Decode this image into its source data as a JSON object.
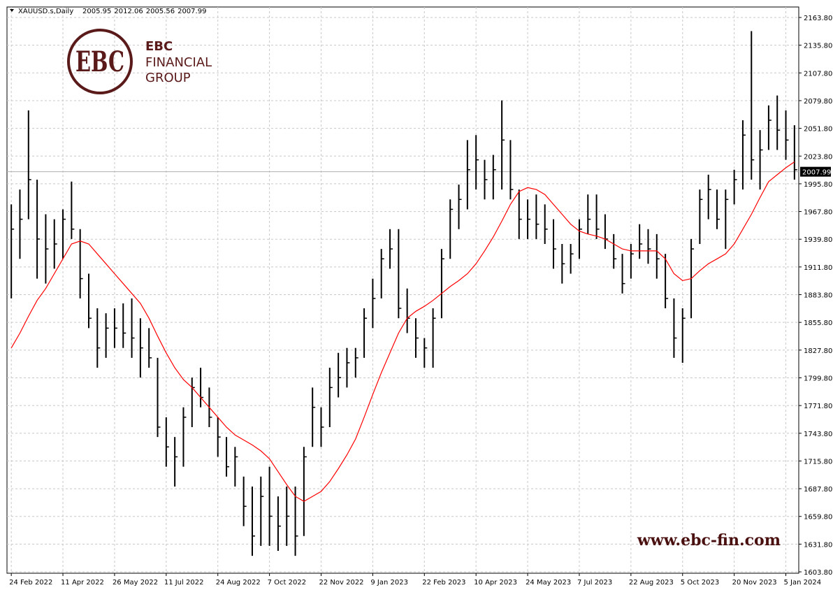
{
  "chart_data": {
    "type": "ohlc",
    "symbol": "XAUUSD.s,Daily",
    "header_values": [
      2005.95,
      2012.06,
      2005.56,
      2007.99
    ],
    "watermark": "www.ebc-fin.com",
    "logo": {
      "mark": "EBC",
      "line1": "FINANCIAL",
      "line2": "GROUP"
    },
    "color": "#000000",
    "ma_color": "#ff0000",
    "current_price": 2007.99,
    "categories": [
      "24 Feb 2022",
      null,
      null,
      null,
      null,
      null,
      "11 Apr 2022",
      null,
      null,
      null,
      null,
      null,
      "26 May 2022",
      null,
      null,
      null,
      null,
      null,
      "11 Jul 2022",
      null,
      null,
      null,
      null,
      null,
      "24 Aug 2022",
      null,
      null,
      null,
      null,
      null,
      "7 Oct 2022",
      null,
      null,
      null,
      null,
      null,
      "22 Nov 2022",
      null,
      null,
      null,
      null,
      null,
      "9 Jan 2023",
      null,
      null,
      null,
      null,
      null,
      "22 Feb 2023",
      null,
      null,
      null,
      null,
      null,
      "10 Apr 2023",
      null,
      null,
      null,
      null,
      null,
      "24 May 2023",
      null,
      null,
      null,
      null,
      null,
      "7 Jul 2023",
      null,
      null,
      null,
      null,
      null,
      "22 Aug 2023",
      null,
      null,
      null,
      null,
      null,
      "5 Oct 2023",
      null,
      null,
      null,
      null,
      null,
      "20 Nov 2023",
      null,
      null,
      null,
      null,
      null,
      "5 Jan 2024",
      null
    ],
    "high": [
      1975,
      1990,
      2070,
      2000,
      1965,
      1960,
      1970,
      1998,
      1950,
      1905,
      1870,
      1865,
      1870,
      1875,
      1880,
      1860,
      1850,
      1820,
      1760,
      1740,
      1770,
      1800,
      1810,
      1790,
      1760,
      1740,
      1730,
      1700,
      1690,
      1700,
      1710,
      1680,
      1690,
      1690,
      1730,
      1790,
      1770,
      1810,
      1825,
      1830,
      1830,
      1870,
      1900,
      1930,
      1950,
      1950,
      1890,
      1860,
      1840,
      1870,
      1930,
      1980,
      1995,
      2040,
      2045,
      2020,
      2025,
      2080,
      2040,
      1990,
      1980,
      1985,
      1975,
      1960,
      1935,
      1935,
      1960,
      1985,
      1985,
      1965,
      1945,
      1925,
      1935,
      1955,
      1950,
      1945,
      1925,
      1880,
      1870,
      1940,
      1990,
      2005,
      1990,
      1990,
      2010,
      2060,
      2150,
      2050,
      2075,
      2085,
      2070,
      2055
    ],
    "low": [
      1880,
      1920,
      1960,
      1900,
      1895,
      1910,
      1920,
      1940,
      1880,
      1850,
      1810,
      1820,
      1830,
      1830,
      1820,
      1800,
      1810,
      1740,
      1710,
      1690,
      1710,
      1750,
      1770,
      1750,
      1720,
      1700,
      1690,
      1650,
      1620,
      1630,
      1630,
      1625,
      1630,
      1620,
      1640,
      1730,
      1730,
      1750,
      1780,
      1790,
      1800,
      1820,
      1850,
      1880,
      1910,
      1860,
      1845,
      1820,
      1810,
      1810,
      1860,
      1920,
      1950,
      1970,
      1990,
      1980,
      1980,
      1990,
      1980,
      1940,
      1940,
      1940,
      1935,
      1910,
      1895,
      1905,
      1920,
      1945,
      1940,
      1930,
      1910,
      1885,
      1900,
      1920,
      1915,
      1900,
      1870,
      1820,
      1815,
      1860,
      1935,
      1960,
      1950,
      1930,
      1975,
      1990,
      2000,
      1990,
      2030,
      2030,
      2020,
      2000
    ],
    "close": [
      1950,
      1960,
      2000,
      1940,
      1930,
      1935,
      1960,
      1950,
      1900,
      1860,
      1830,
      1850,
      1850,
      1845,
      1840,
      1830,
      1820,
      1750,
      1730,
      1720,
      1760,
      1790,
      1780,
      1760,
      1740,
      1710,
      1720,
      1670,
      1640,
      1680,
      1660,
      1650,
      1660,
      1640,
      1720,
      1770,
      1750,
      1790,
      1800,
      1815,
      1820,
      1860,
      1880,
      1920,
      1930,
      1870,
      1860,
      1840,
      1830,
      1860,
      1920,
      1970,
      1980,
      2010,
      2020,
      2000,
      2010,
      2040,
      1990,
      1960,
      1960,
      1955,
      1950,
      1930,
      1915,
      1925,
      1950,
      1960,
      1950,
      1940,
      1920,
      1895,
      1925,
      1935,
      1930,
      1920,
      1880,
      1840,
      1860,
      1930,
      1980,
      1990,
      1960,
      1980,
      2000,
      2045,
      2020,
      2030,
      2060,
      2050,
      2040,
      2010
    ],
    "ma": [
      1830,
      1845,
      1862,
      1878,
      1890,
      1905,
      1920,
      1935,
      1938,
      1935,
      1925,
      1915,
      1905,
      1895,
      1885,
      1875,
      1860,
      1842,
      1825,
      1810,
      1798,
      1790,
      1780,
      1770,
      1760,
      1750,
      1742,
      1737,
      1732,
      1726,
      1718,
      1705,
      1692,
      1680,
      1675,
      1680,
      1685,
      1695,
      1708,
      1722,
      1738,
      1760,
      1783,
      1805,
      1825,
      1845,
      1860,
      1867,
      1872,
      1878,
      1885,
      1892,
      1898,
      1905,
      1915,
      1928,
      1942,
      1958,
      1975,
      1988,
      1992,
      1990,
      1985,
      1975,
      1965,
      1955,
      1948,
      1945,
      1943,
      1940,
      1935,
      1930,
      1928,
      1928,
      1928,
      1928,
      1920,
      1905,
      1898,
      1900,
      1908,
      1915,
      1920,
      1925,
      1935,
      1950,
      1965,
      1982,
      1998,
      2005,
      2012,
      2018
    ],
    "ylim": [
      1602.4,
      2174.4
    ],
    "yticks": [
      {
        "value": 1603.8,
        "label": "1603.80"
      },
      {
        "value": 1631.8,
        "label": "1631.80"
      },
      {
        "value": 1659.8,
        "label": "1659.80"
      },
      {
        "value": 1687.8,
        "label": "1687.80"
      },
      {
        "value": 1715.8,
        "label": "1715.80"
      },
      {
        "value": 1743.8,
        "label": "1743.80"
      },
      {
        "value": 1771.8,
        "label": "1771.80"
      },
      {
        "value": 1799.8,
        "label": "1799.80"
      },
      {
        "value": 1827.8,
        "label": "1827.80"
      },
      {
        "value": 1855.8,
        "label": "1855.80"
      },
      {
        "value": 1883.8,
        "label": "1883.80"
      },
      {
        "value": 1911.8,
        "label": "1911.80"
      },
      {
        "value": 1939.8,
        "label": "1939.80"
      },
      {
        "value": 1967.8,
        "label": "1967.80"
      },
      {
        "value": 1995.8,
        "label": "1995.80"
      },
      {
        "value": 2023.8,
        "label": "2023.80"
      },
      {
        "value": 2051.8,
        "label": "2051.80"
      },
      {
        "value": 2079.8,
        "label": "2079.80"
      },
      {
        "value": 2107.8,
        "label": "2107.80"
      },
      {
        "value": 2135.8,
        "label": "2135.80"
      },
      {
        "value": 2163.8,
        "label": "2163.80"
      }
    ],
    "grid": true
  }
}
